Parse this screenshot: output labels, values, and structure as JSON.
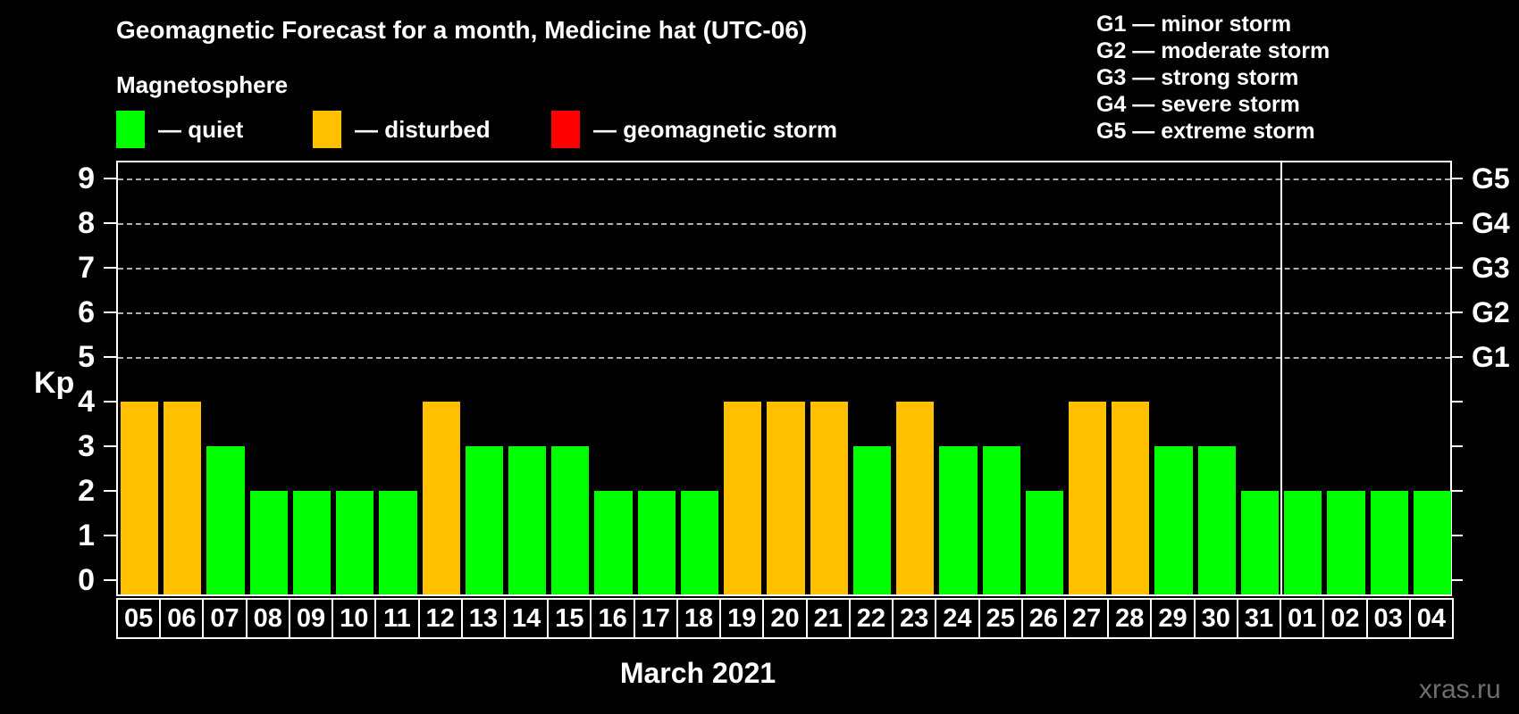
{
  "title": "Geomagnetic Forecast for a month, Medicine hat (UTC-06)",
  "legend": {
    "title": "Magnetosphere",
    "items": [
      {
        "name": "quiet",
        "label": "— quiet",
        "color": "#00ff00"
      },
      {
        "name": "disturbed",
        "label": "— disturbed",
        "color": "#ffc000"
      },
      {
        "name": "storm",
        "label": "— geomagnetic storm",
        "color": "#ff0000"
      }
    ]
  },
  "storm_scale": [
    "G1 — minor storm",
    "G2 — moderate storm",
    "G3 — strong storm",
    "G4 — severe storm",
    "G5 — extreme storm"
  ],
  "watermark": "xras.ru",
  "chart_data": {
    "type": "bar",
    "title": "Geomagnetic Forecast for a month, Medicine hat (UTC-06)",
    "ylabel": "Kp",
    "ylim": [
      0,
      9
    ],
    "y_ticks": [
      0,
      1,
      2,
      3,
      4,
      5,
      6,
      7,
      8,
      9
    ],
    "gridlines_at": [
      5,
      6,
      7,
      8,
      9
    ],
    "grid": "dashed horizontal at storm levels only",
    "right_axis": [
      {
        "kp": 5,
        "label": "G1"
      },
      {
        "kp": 6,
        "label": "G2"
      },
      {
        "kp": 7,
        "label": "G3"
      },
      {
        "kp": 8,
        "label": "G4"
      },
      {
        "kp": 9,
        "label": "G5"
      }
    ],
    "categories": [
      "05",
      "06",
      "07",
      "08",
      "09",
      "10",
      "11",
      "12",
      "13",
      "14",
      "15",
      "16",
      "17",
      "18",
      "19",
      "20",
      "21",
      "22",
      "23",
      "24",
      "25",
      "26",
      "27",
      "28",
      "29",
      "30",
      "31",
      "01",
      "02",
      "03",
      "04"
    ],
    "values": [
      4,
      4,
      3,
      2,
      2,
      2,
      2,
      4,
      3,
      3,
      3,
      2,
      2,
      2,
      4,
      4,
      4,
      3,
      4,
      3,
      3,
      2,
      4,
      4,
      3,
      3,
      2,
      2,
      2,
      2,
      2
    ],
    "statuses": [
      "disturbed",
      "disturbed",
      "quiet",
      "quiet",
      "quiet",
      "quiet",
      "quiet",
      "disturbed",
      "quiet",
      "quiet",
      "quiet",
      "quiet",
      "quiet",
      "quiet",
      "disturbed",
      "disturbed",
      "disturbed",
      "quiet",
      "disturbed",
      "quiet",
      "quiet",
      "quiet",
      "disturbed",
      "disturbed",
      "quiet",
      "quiet",
      "quiet",
      "quiet",
      "quiet",
      "quiet",
      "quiet"
    ],
    "colors": {
      "quiet": "#00ff00",
      "disturbed": "#ffc000",
      "storm": "#ff0000"
    },
    "month_label": "March 2021",
    "month_boundary_after_index": 26
  }
}
